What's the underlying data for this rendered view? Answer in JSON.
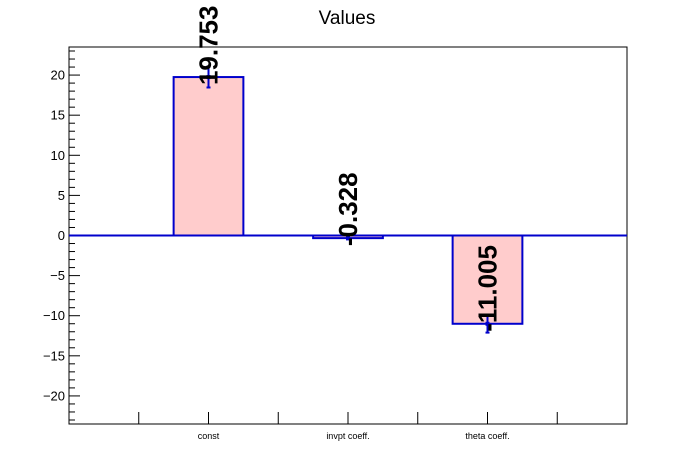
{
  "chart_data": {
    "type": "bar",
    "title": "Values",
    "xlabel": "",
    "ylabel": "",
    "categories": [
      "const",
      "invpt coeff.",
      "theta coeff."
    ],
    "values": [
      19.753,
      -0.328,
      -11.005
    ],
    "value_labels": [
      "19.753",
      "-0.328",
      "-11.005"
    ],
    "errors": [
      1.3,
      0.15,
      1.1
    ],
    "ylim": [
      -23.5,
      23.5
    ],
    "yticks": [
      -20,
      -15,
      -10,
      -5,
      0,
      5,
      10,
      15,
      20
    ],
    "ytick_labels": [
      "−20",
      "−15",
      "−10",
      "−5",
      "0",
      "5",
      "10",
      "15",
      "20"
    ],
    "grid": false,
    "legend": "none",
    "colors": {
      "bar_fill": "#ffcccc",
      "bar_edge": "#0000cc",
      "axis": "#000000",
      "text": "#000000"
    }
  }
}
